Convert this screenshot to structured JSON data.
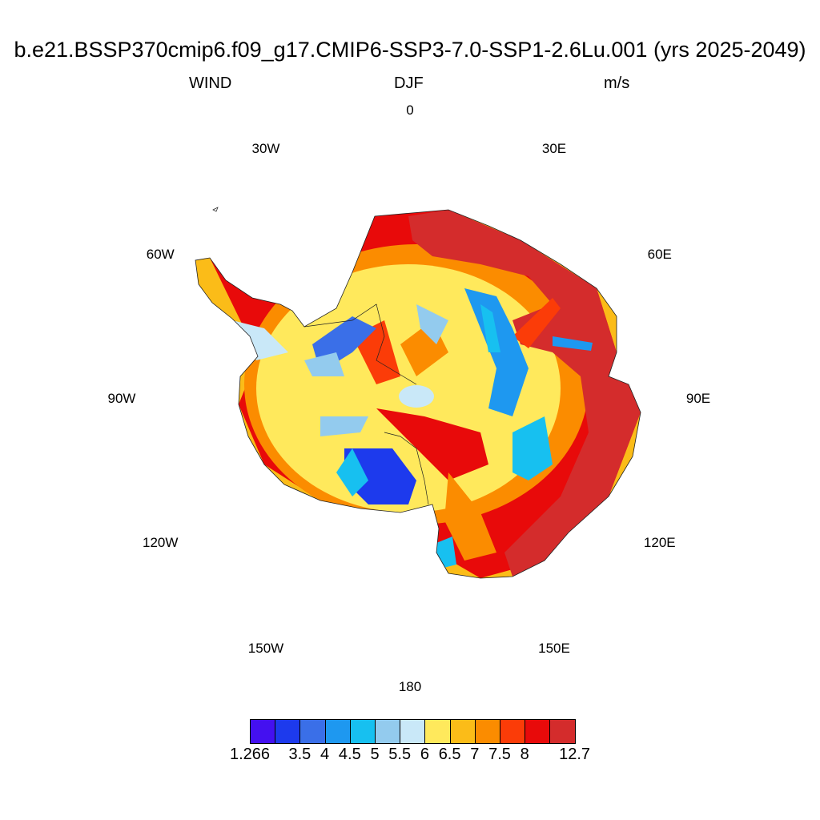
{
  "header": {
    "title": "b.e21.BSSP370cmip6.f09_g17.CMIP6-SSP3-7.0-SSP1-2.6Lu.001 (yrs 2025-2049)",
    "variable": "WIND",
    "season": "DJF",
    "units": "m/s"
  },
  "map": {
    "projection": "south-polar-stereographic",
    "longitude_labels": [
      "0",
      "30E",
      "60E",
      "90E",
      "120E",
      "150E",
      "180",
      "150W",
      "120W",
      "90W",
      "60W",
      "30W"
    ],
    "field": "wind speed over Antarctica; strongest (12.7 m/s class) along East Antarctic coast 30E–140E, weakest bands (3.5–5 m/s) over interior plateau and Ross/Ronne ice shelves"
  },
  "colorbar": {
    "colors": [
      "#4410f0",
      "#1d3aed",
      "#3a6fe8",
      "#1e98f0",
      "#17c0f0",
      "#93cbee",
      "#c9e8f8",
      "#ffe95c",
      "#fbbc18",
      "#fb8c00",
      "#fb3c08",
      "#e80a0a",
      "#d42c2c"
    ],
    "labels": [
      "1.266",
      "3.5",
      "4",
      "4.5",
      "5",
      "5.5",
      "6",
      "6.5",
      "7",
      "7.5",
      "8",
      "12.7"
    ]
  }
}
